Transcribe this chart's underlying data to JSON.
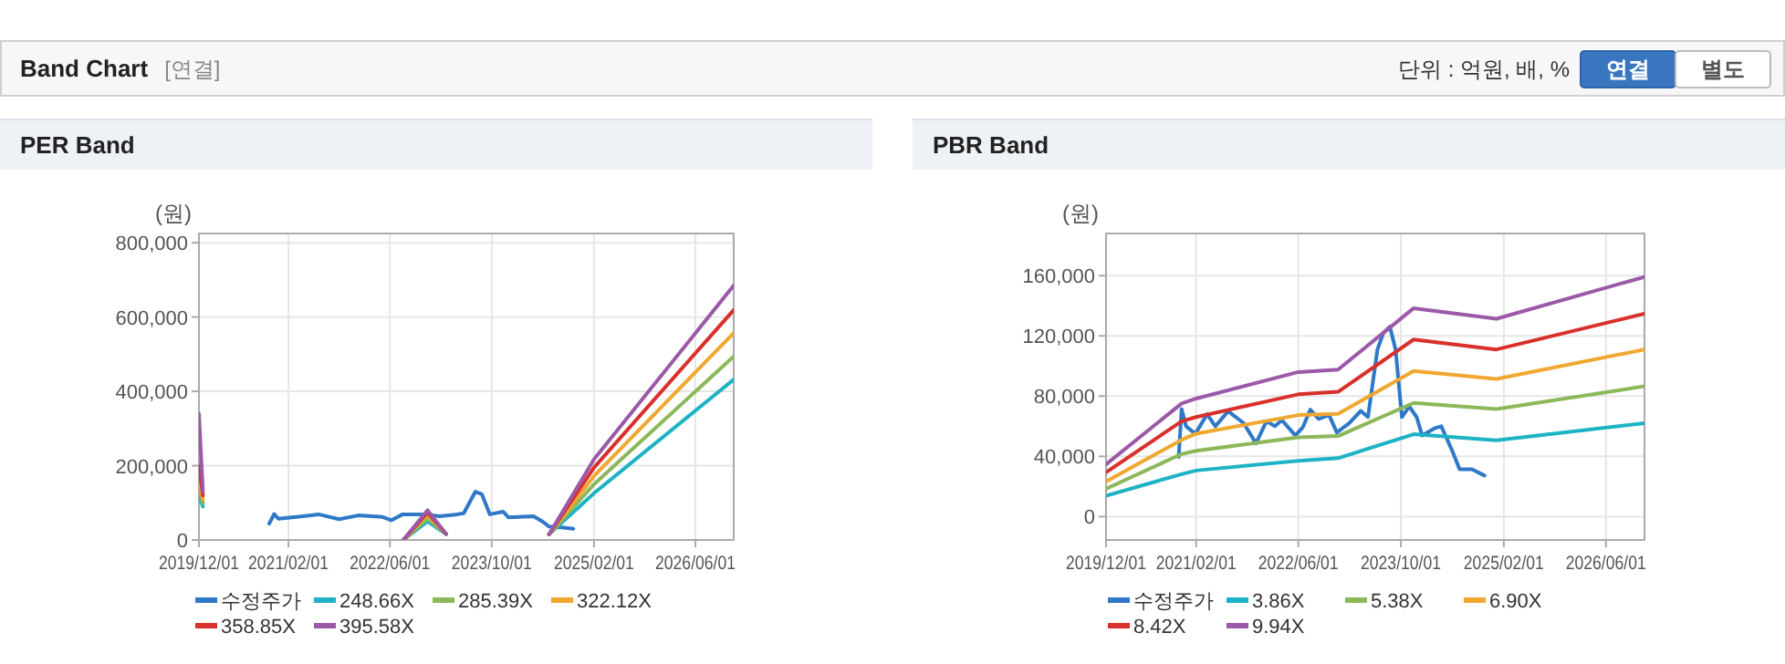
{
  "chart_data": [
    {
      "type": "other",
      "title": "Band Chart",
      "subtitle": "[연결]",
      "annotations": [
        "단위 : 억원, 배, %",
        "연결",
        "별도"
      ]
    },
    {
      "type": "line",
      "title": "PER Band",
      "ylabel": "(원)",
      "grid": true,
      "legend": "bottom",
      "xlim": [
        "2019-12-01",
        "2026-12-01"
      ],
      "xticks": [
        {
          "value": "2019-12-01",
          "label": "2019/12/01"
        },
        {
          "value": "2021-02-01",
          "label": "2021/02/01"
        },
        {
          "value": "2022-06-01",
          "label": "2022/06/01"
        },
        {
          "value": "2023-10-01",
          "label": "2023/10/01"
        },
        {
          "value": "2025-02-01",
          "label": "2025/02/01"
        },
        {
          "value": "2026-06-01",
          "label": "2026/06/01"
        }
      ],
      "ylim": [
        0,
        825000
      ],
      "yticks": [
        {
          "value": 0,
          "label": "0"
        },
        {
          "value": 200000,
          "label": "200,000"
        },
        {
          "value": 400000,
          "label": "400,000"
        },
        {
          "value": 600000,
          "label": "600,000"
        },
        {
          "value": 800000,
          "label": "800,000"
        }
      ],
      "series": [
        {
          "name": "수정주가",
          "color": "#2f78c8",
          "x": [
            "2020-11-01",
            "2020-11-25",
            "2020-12-15",
            "2021-04-12",
            "2021-06-25",
            "2021-10-01",
            "2022-01-01",
            "2022-04-25",
            "2022-06-07",
            "2022-08-01",
            "2022-11-12",
            "2023-01-25",
            "2023-04-20",
            "2023-05-20",
            "2023-07-15",
            "2023-08-15",
            "2023-09-22",
            "2023-11-25",
            "2023-12-20",
            "2024-04-18",
            "2024-06-01",
            "2024-07-01",
            "2024-09-01",
            "2024-10-25"
          ],
          "values": [
            44000,
            70000,
            57000,
            64000,
            69000,
            56000,
            66000,
            62000,
            53000,
            69000,
            69000,
            64000,
            69000,
            72000,
            130000,
            123000,
            69000,
            76000,
            61000,
            64000,
            49000,
            36000,
            34000,
            30000
          ]
        },
        {
          "name": "248.66X",
          "color": "#1eb3c4",
          "x": [
            "2019-12-01",
            "2019-12-20"
          ],
          "values": [
            120000,
            90000
          ]
        },
        {
          "name": "285.39X",
          "color": "#8cb85a",
          "x": [
            "2019-12-01",
            "2019-12-20"
          ],
          "values": [
            140000,
            100000
          ]
        },
        {
          "name": "322.12X",
          "color": "#f0a830",
          "x": [
            "2019-12-01",
            "2019-12-20"
          ],
          "values": [
            170000,
            110000
          ]
        },
        {
          "name": "358.85X",
          "color": "#d9302c",
          "x": [
            "2019-12-01",
            "2019-12-20"
          ],
          "values": [
            200000,
            120000
          ]
        },
        {
          "name": "395.58X",
          "color": "#9b59a8",
          "x": [
            "2019-12-01",
            "2019-12-20"
          ],
          "values": [
            340000,
            130000
          ]
        },
        {
          "color": "#1eb3c4",
          "x": [
            "2022-08-04",
            "2022-11-28",
            "2023-02-25"
          ],
          "values": [
            0,
            50000,
            16000
          ]
        },
        {
          "color": "#8cb85a",
          "x": [
            "2022-08-04",
            "2022-11-28",
            "2023-02-25"
          ],
          "values": [
            0,
            58000,
            16000
          ]
        },
        {
          "color": "#f0a830",
          "x": [
            "2022-08-04",
            "2022-11-28",
            "2023-02-25"
          ],
          "values": [
            0,
            68000,
            16000
          ]
        },
        {
          "color": "#d9302c",
          "x": [
            "2022-08-04",
            "2022-11-28",
            "2023-02-25"
          ],
          "values": [
            0,
            74000,
            16000
          ]
        },
        {
          "color": "#9b59a8",
          "x": [
            "2022-08-04",
            "2022-11-28",
            "2023-02-25"
          ],
          "values": [
            0,
            80000,
            16000
          ]
        },
        {
          "color": "#1eb3c4",
          "x": [
            "2024-07-01",
            "2025-02-01",
            "2026-12-01"
          ],
          "values": [
            15000,
            126000,
            432000
          ]
        },
        {
          "color": "#8cb85a",
          "x": [
            "2024-07-01",
            "2025-02-01",
            "2026-12-01"
          ],
          "values": [
            15000,
            150000,
            494000
          ]
        },
        {
          "color": "#f0a830",
          "x": [
            "2024-07-01",
            "2025-02-01",
            "2026-12-01"
          ],
          "values": [
            15000,
            172000,
            557000
          ]
        },
        {
          "color": "#d9302c",
          "x": [
            "2024-07-01",
            "2025-02-01",
            "2026-12-01"
          ],
          "values": [
            15000,
            195000,
            619000
          ]
        },
        {
          "color": "#9b59a8",
          "x": [
            "2024-07-01",
            "2025-02-01",
            "2026-12-01"
          ],
          "values": [
            15000,
            217000,
            685000
          ]
        }
      ]
    },
    {
      "type": "line",
      "title": "PBR Band",
      "ylabel": "(원)",
      "grid": true,
      "legend": "bottom",
      "xlim": [
        "2019-12-01",
        "2026-12-01"
      ],
      "xticks": [
        {
          "value": "2019-12-01",
          "label": "2019/12/01"
        },
        {
          "value": "2021-02-01",
          "label": "2021/02/01"
        },
        {
          "value": "2022-06-01",
          "label": "2022/06/01"
        },
        {
          "value": "2023-10-01",
          "label": "2023/10/01"
        },
        {
          "value": "2025-02-01",
          "label": "2025/02/01"
        },
        {
          "value": "2026-06-01",
          "label": "2026/06/01"
        }
      ],
      "ylim": [
        -15500,
        188000
      ],
      "yticks": [
        {
          "value": 0,
          "label": "0"
        },
        {
          "value": 40000,
          "label": "40,000"
        },
        {
          "value": 80000,
          "label": "80,000"
        },
        {
          "value": 120000,
          "label": "120,000"
        },
        {
          "value": 160000,
          "label": "160,000"
        }
      ],
      "series": [
        {
          "name": "수정주가",
          "color": "#2f78c8",
          "x": [
            "2020-11-10",
            "2020-11-24",
            "2020-12-15",
            "2021-01-28",
            "2021-03-25",
            "2021-05-03",
            "2021-07-03",
            "2021-09-15",
            "2021-11-12",
            "2022-01-01",
            "2022-02-10",
            "2022-03-15",
            "2022-05-18",
            "2022-06-22",
            "2022-07-28",
            "2022-09-05",
            "2022-10-25",
            "2022-12-01",
            "2023-01-28",
            "2023-03-25",
            "2023-04-28",
            "2023-06-12",
            "2023-07-10",
            "2023-08-10",
            "2023-09-06",
            "2023-10-06",
            "2023-11-10",
            "2023-12-15",
            "2024-01-10",
            "2024-03-12",
            "2024-04-10",
            "2024-06-01",
            "2024-07-06",
            "2024-09-03",
            "2024-11-01"
          ],
          "values": [
            39600,
            71400,
            60000,
            55000,
            68000,
            60000,
            70000,
            62000,
            48600,
            63300,
            60000,
            64100,
            53900,
            59200,
            71000,
            64900,
            67400,
            55900,
            62000,
            70200,
            66100,
            111000,
            122000,
            126100,
            111000,
            66100,
            73100,
            66100,
            53900,
            58800,
            60000,
            43700,
            31400,
            31400,
            27300
          ]
        },
        {
          "name": "3.86X",
          "color": "#1eb3c4",
          "x": [
            "2019-12-01",
            "2020-11-24",
            "2021-02-01",
            "2022-06-01",
            "2022-12-07",
            "2023-12-01",
            "2024-12-28",
            "2026-12-01"
          ],
          "values": [
            13900,
            28200,
            30600,
            37100,
            38800,
            54700,
            50600,
            62000
          ]
        },
        {
          "name": "5.38X",
          "color": "#8cb85a",
          "x": [
            "2019-12-01",
            "2020-11-24",
            "2021-02-01",
            "2022-06-01",
            "2022-12-07",
            "2023-12-01",
            "2024-12-28",
            "2026-12-01"
          ],
          "values": [
            18400,
            41600,
            43700,
            52700,
            53500,
            75500,
            71400,
            86500
          ]
        },
        {
          "name": "6.90X",
          "color": "#f0a830",
          "x": [
            "2019-12-01",
            "2020-11-24",
            "2021-02-01",
            "2022-06-01",
            "2022-12-07",
            "2023-12-01",
            "2024-12-28",
            "2026-12-01"
          ],
          "values": [
            23300,
            51000,
            55100,
            67400,
            68200,
            96700,
            91400,
            111000
          ]
        },
        {
          "name": "8.42X",
          "color": "#d9302c",
          "x": [
            "2019-12-01",
            "2020-11-24",
            "2021-02-01",
            "2022-06-01",
            "2022-12-07",
            "2023-12-01",
            "2024-12-28",
            "2026-12-01"
          ],
          "values": [
            29400,
            63300,
            66100,
            81200,
            82900,
            117600,
            111000,
            134700
          ]
        },
        {
          "name": "9.94X",
          "color": "#9b59a8",
          "x": [
            "2019-12-01",
            "2020-11-24",
            "2021-02-01",
            "2022-06-01",
            "2022-12-07",
            "2023-12-01",
            "2024-12-28",
            "2026-12-01"
          ],
          "values": [
            34700,
            75100,
            78400,
            96000,
            97600,
            138400,
            131400,
            159200
          ]
        }
      ]
    }
  ]
}
